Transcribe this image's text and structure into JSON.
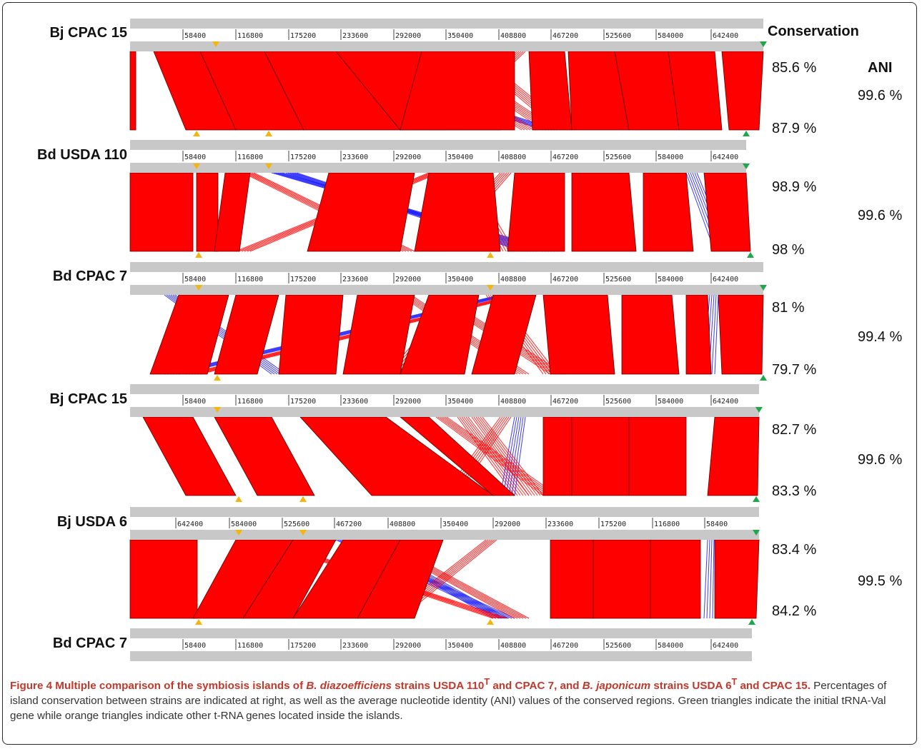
{
  "figure": {
    "strains": [
      {
        "name": "Bj CPAC 15",
        "reversed": false
      },
      {
        "name": "Bd USDA 110",
        "reversed": false
      },
      {
        "name": "Bd CPAC 7",
        "reversed": false
      },
      {
        "name": "Bj CPAC 15",
        "reversed": false
      },
      {
        "name": "Bj USDA 6",
        "reversed": true
      },
      {
        "name": "Bd CPAC 7",
        "reversed": false
      }
    ],
    "ticks": [
      "58400",
      "116800",
      "175200",
      "233600",
      "292000",
      "350400",
      "408800",
      "467200",
      "525600",
      "584000",
      "642400"
    ],
    "header_conservation": "Conservation",
    "header_ani": "ANI",
    "comparisons": [
      {
        "conservation_top": "85.6 %",
        "conservation_bottom": "87.9 %",
        "ani": "99.6 %"
      },
      {
        "conservation_top": "98.9 %",
        "conservation_bottom": "98 %",
        "ani": "99.6 %"
      },
      {
        "conservation_top": "81 %",
        "conservation_bottom": "79.7 %",
        "ani": "99.4 %"
      },
      {
        "conservation_top": "82.7 %",
        "conservation_bottom": "83.3 %",
        "ani": "99.6 %"
      },
      {
        "conservation_top": "83.4 %",
        "conservation_bottom": "84.2 %",
        "ani": "99.5 %"
      }
    ],
    "colors": {
      "match": "#ff0000",
      "inverted": "#1a1aff",
      "track": "#c8c8c8",
      "trna_val": "#1fa84a",
      "trna_other": "#f5b50d"
    }
  },
  "caption": {
    "title_parts": [
      "Figure 4 Multiple comparison of the symbiosis islands of ",
      "B. diazoefficiens",
      " strains USDA 110",
      "T",
      " and CPAC 7, and ",
      "B. japonicum",
      " strains USDA 6",
      "T",
      " and CPAC 15."
    ],
    "body": " Percentages of island conservation between strains are indicated at right, as well as the average nucleotide identity (ANI) values of the conserved regions. Green triangles indicate the initial tRNA-Val gene while orange triangles indicate other t-RNA genes located inside the islands."
  }
}
